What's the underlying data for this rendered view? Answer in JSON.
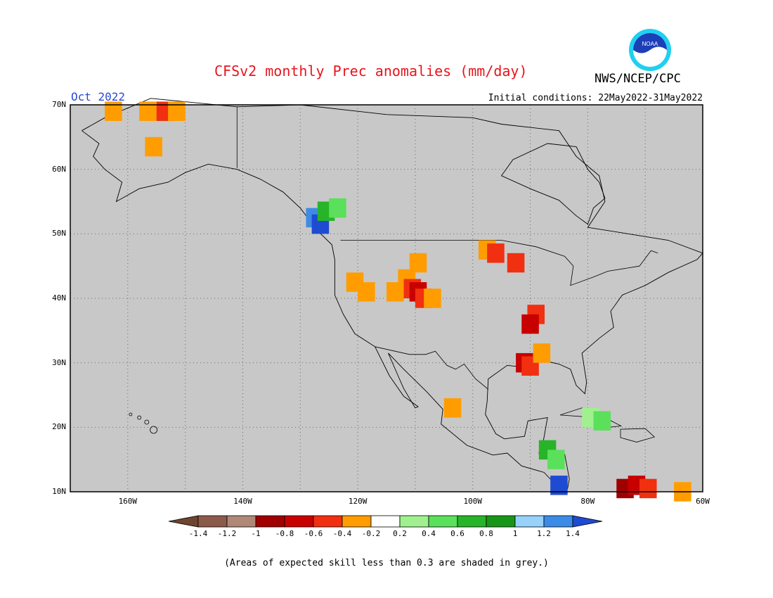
{
  "header": {
    "title": "CFSv2 monthly Prec anomalies (mm/day)",
    "agency": "NWS/NCEP/CPC",
    "logo_text": "NOAA",
    "month": "Oct 2022",
    "initial_conditions": "Initial conditions: 22May2022-31May2022"
  },
  "map": {
    "background": "#c8c8c8",
    "lon_range": [
      -170,
      -60
    ],
    "lat_range": [
      10,
      70
    ],
    "lat_labels": [
      "70N",
      "60N",
      "50N",
      "40N",
      "30N",
      "20N",
      "10N"
    ],
    "lon_labels": [
      "160W",
      "140W",
      "120W",
      "100W",
      "80W",
      "60W"
    ]
  },
  "colorbar": {
    "labels": [
      "-1.4",
      "-1.2",
      "-1",
      "-0.8",
      "-0.6",
      "-0.4",
      "-0.2",
      "0.2",
      "0.4",
      "0.6",
      "0.8",
      "1",
      "1.2",
      "1.4"
    ],
    "colors": [
      "#6e4530",
      "#8c5a4a",
      "#b08878",
      "#a00000",
      "#c80000",
      "#f03010",
      "#ff9d00",
      "#ffffff",
      "#a0f090",
      "#5ae05a",
      "#28b428",
      "#189618",
      "#96d2fa",
      "#3c8ce6",
      "#1e4bd2"
    ]
  },
  "anomalies": [
    {
      "lon": -163,
      "lat": 69.5,
      "color": "#ff9d00"
    },
    {
      "lon": -157,
      "lat": 69.5,
      "color": "#ff9d00"
    },
    {
      "lon": -154,
      "lat": 69.5,
      "color": "#f03010"
    },
    {
      "lon": -152,
      "lat": 69.5,
      "color": "#ff9d00"
    },
    {
      "lon": -156,
      "lat": 64,
      "color": "#ff9d00"
    },
    {
      "lon": -128,
      "lat": 53,
      "color": "#3c8ce6"
    },
    {
      "lon": -127,
      "lat": 52,
      "color": "#1e4bd2"
    },
    {
      "lon": -126,
      "lat": 54,
      "color": "#28b428"
    },
    {
      "lon": -124,
      "lat": 54.5,
      "color": "#5ae05a"
    },
    {
      "lon": -121,
      "lat": 43,
      "color": "#ff9d00"
    },
    {
      "lon": -119,
      "lat": 41.5,
      "color": "#ff9d00"
    },
    {
      "lon": -114,
      "lat": 41.5,
      "color": "#ff9d00"
    },
    {
      "lon": -112,
      "lat": 43.5,
      "color": "#ff9d00"
    },
    {
      "lon": -110,
      "lat": 46,
      "color": "#ff9d00"
    },
    {
      "lon": -111,
      "lat": 42,
      "color": "#f03010"
    },
    {
      "lon": -110,
      "lat": 41.5,
      "color": "#c80000"
    },
    {
      "lon": -109,
      "lat": 40.5,
      "color": "#f03010"
    },
    {
      "lon": -107.5,
      "lat": 40.5,
      "color": "#ff9d00"
    },
    {
      "lon": -98,
      "lat": 48,
      "color": "#ff9d00"
    },
    {
      "lon": -96.5,
      "lat": 47.5,
      "color": "#f03010"
    },
    {
      "lon": -93,
      "lat": 46,
      "color": "#f03010"
    },
    {
      "lon": -89.5,
      "lat": 38,
      "color": "#f03010"
    },
    {
      "lon": -90.5,
      "lat": 36.5,
      "color": "#c80000"
    },
    {
      "lon": -91.5,
      "lat": 30.5,
      "color": "#c80000"
    },
    {
      "lon": -90.5,
      "lat": 30,
      "color": "#f03010"
    },
    {
      "lon": -88.5,
      "lat": 32,
      "color": "#ff9d00"
    },
    {
      "lon": -104,
      "lat": 23.5,
      "color": "#ff9d00"
    },
    {
      "lon": -87.5,
      "lat": 17,
      "color": "#28b428"
    },
    {
      "lon": -86,
      "lat": 15.5,
      "color": "#5ae05a"
    },
    {
      "lon": -80,
      "lat": 22,
      "color": "#a0f090"
    },
    {
      "lon": -78,
      "lat": 21.5,
      "color": "#5ae05a"
    },
    {
      "lon": -74,
      "lat": 11,
      "color": "#a00000"
    },
    {
      "lon": -72,
      "lat": 11.5,
      "color": "#c80000"
    },
    {
      "lon": -70,
      "lat": 11,
      "color": "#f03010"
    },
    {
      "lon": -64,
      "lat": 10.5,
      "color": "#ff9d00"
    },
    {
      "lon": -85.5,
      "lat": 11.5,
      "color": "#1e4bd2"
    }
  ],
  "footnote": "(Areas of expected skill less than 0.3 are shaded in grey.)"
}
